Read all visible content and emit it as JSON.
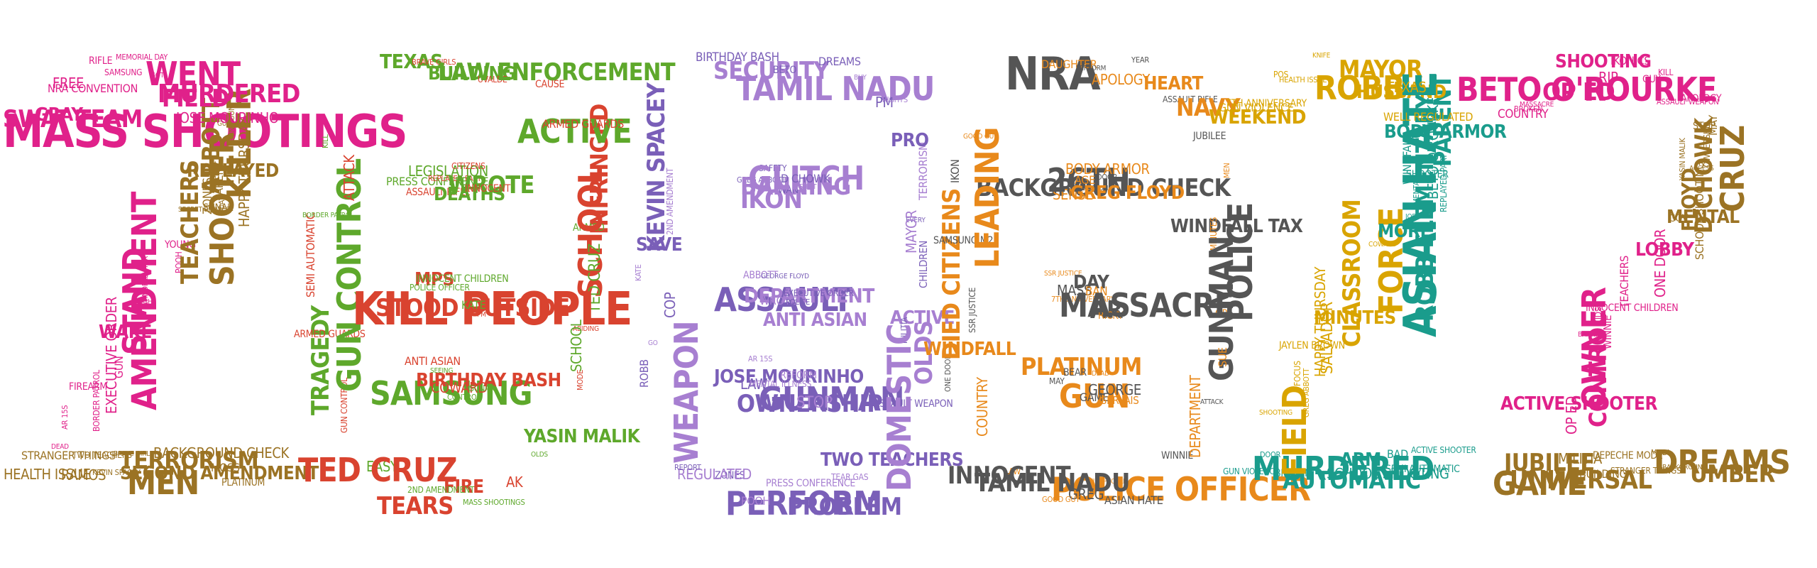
{
  "colors": {
    "pink": "#e0218a",
    "orange": "#e8891b",
    "green": "#5ea82b",
    "teal": "#1a9c8c",
    "purple": "#7a5fb8",
    "brown": "#9b7324",
    "gray": "#555555",
    "red": "#d9432f",
    "gold": "#d9a400",
    "lilac": "#a77fd1"
  },
  "digits": [
    {
      "id": "2a",
      "words": [
        "MASS SHOOTINGS",
        "GUNS GUN",
        "YOUNG",
        "HEALTH ISSUE",
        "SWAT TEAM",
        "GUY",
        "POOH",
        "STRANGER THINGS",
        "GRAY",
        "KILLER",
        "WINDFALL TAX",
        "RAMOS",
        "FREE",
        "ABBOTT",
        "RISHI",
        "TWO TEACHERS",
        "NRA CONVENTION",
        "REPLAYED",
        "STAND",
        "KEVIN SPACEY",
        "RIFLE",
        "HAPPY THURSDAY",
        "AMENDMENT",
        "BRAVE GIRLS",
        "SAMSUNG",
        "PARENT",
        "WAKE",
        "MEN",
        "MEMORIAL DAY",
        "SUNAK",
        "EXECUTIVE ORDER",
        "TERRORISM",
        "GOT",
        "ZONES",
        "GUN",
        "SECOND AMENDMENT",
        "WENT",
        "BDAY",
        "FIREARM",
        "BACKGROUND CHECK",
        "FIELD",
        "SECRET SERVICE",
        "BORDER PATROL",
        "MOSS",
        "MURDERED",
        "SHOOTER",
        "AR 15S",
        "PLATINUM",
        "JOSE MOURINHO",
        "TEACHERS",
        "DEAD"
      ]
    },
    {
      "id": "0a",
      "words": [
        "TEXAS",
        "INFRINGED",
        "OLDS",
        "GUN CONTROL",
        "PRESS CONFERENCE",
        "MPS",
        "SAMSUNG",
        "BRAVE GIRLS",
        "ARMED",
        "AK",
        "TRAGEDY",
        "ASSAULT RIFLE",
        "POLICE OFFICER",
        "ANTI ASIAN",
        "BUILDING",
        "SCHOOL",
        "MASS SHOOTINGS",
        "ARMED GUARDS",
        "LEGISLATION",
        "STOOD OUTSIDE",
        "SEEING",
        "UVALDE",
        "TED CRUZ",
        "FIRE",
        "GUN CONTROL",
        "REPLAYED PART",
        "INNOCENT CHILDREN",
        "COWARD",
        "LAW ENFORCEMENT",
        "ABIDING",
        "2ND AMENDMENT",
        "SEMI AUTOMATIC",
        "DEATHS",
        "KILL PEOPLE",
        "CONTROL",
        "CAUSE",
        "SCHOOL",
        "TEARS",
        "BORDER PATROL",
        "CITIZENS",
        "KATE",
        "BIRTHDAY BASH",
        "ACTIVE",
        "MODE",
        "EASY",
        "ATTACK",
        "WROTE",
        "PM",
        "SUNAK",
        "ARMED GUARDS",
        "YASIN MALIK",
        "TED CRUZ",
        "KILL",
        "INNOCENT"
      ]
    },
    {
      "id": "2b",
      "words": [
        "BIRTHDAY BASH",
        "TERRORISM",
        "TWO TEACHERS",
        "WEAPON",
        "GREG ABBOTT",
        "ABBOTT",
        "LAW",
        "SECURITY",
        "EVERY",
        "TEAR GAS",
        "ROBB",
        "IKON",
        "ASSAULT",
        "AR 15S",
        "BETO",
        "MAYOR",
        "PROBLEM",
        "GO",
        "SAFETY",
        "WROTE",
        "JOSE MOURINHO",
        "TAMIL NADU",
        "CHILDREN",
        "PRESS CONFERENCE",
        "COP",
        "BANNING",
        "GEORGE FLOYD",
        "MENTAL ILLNESS",
        "DREAMS",
        "ACTIVE",
        "PERFORM",
        "KATE",
        "WAN",
        "DEPARTMENT",
        "OWNERSHIP",
        "BUY",
        "MILITIA",
        "POOH",
        "SAVE",
        "GLITCH",
        "POLICE",
        "REFORM",
        "PM",
        "OLDS",
        "ZONES",
        "2ND AMENDMENT",
        "D CHOWK",
        "ANTI ASIAN",
        "GUNMAN",
        "RIGHTS",
        "ASSAULT WEAPON",
        "REGULATED",
        "KEVIN SPACEY",
        "SHOT",
        "EXECUTIVE ORDER",
        "STOP",
        "PRO",
        "DOMESTIC",
        "REPORT"
      ]
    },
    {
      "id": "0b",
      "words": [
        "NRA",
        "MEN",
        "WINNIE",
        "COUNTRY",
        "BACKGROUND CHECK",
        "SSR JUSTICE",
        "MAY",
        "DAUGHTER",
        "WINDFALL TAX",
        "POLICE OFFICER",
        "ONE DOOR",
        "SENSE",
        "MASS",
        "PLATINUM",
        "PERFORM",
        "MINUTES",
        "ASIAN HATE",
        "WINDFALL",
        "26TH",
        "7TH ANNIVERSARY",
        "BEAR",
        "APOLOGY",
        "POLICE",
        "KILL PEOPLE",
        "SSR JUSTICE",
        "AGE",
        "DAY",
        "GUN",
        "YEAR",
        "OP",
        "GREG",
        "DIED CITIZENS",
        "SOLUTION",
        "BAN",
        "GAME",
        "HEART",
        "GUNMAN",
        "GOOD GUY",
        "SAMSUNG M23",
        "BODY ARMOR",
        "AR",
        "DEAD",
        "ASSAULT RIFLE",
        "SUE",
        "TAMIL NADU",
        "LEADING",
        "DOOR",
        "RICKY",
        "GEORGE",
        "NAVY",
        "ATTACK",
        "LAW",
        "IKON",
        "GREG FLOYD",
        "MASSACRE",
        "GERVAIS",
        "JUBILEE",
        "DEPARTMENT",
        "INNOCENT",
        "GOOD GUY"
      ]
    },
    {
      "id": "2c",
      "words": [
        "WEEKEND",
        "PARENT",
        "COWARD",
        "GUN VIOLENCE",
        "GUN VIOLENCE",
        "BODY ARMOR",
        "FORCE",
        "DOOR",
        "7TH ANNIVERSARY",
        "BETO O'ROURKE",
        "CLASSROOM",
        "BROKEN",
        "POS",
        "WINDFALL",
        "MINUTES",
        "MURDERED",
        "HEALTH ISSUE",
        "SHOOTER",
        "HAPPY THURSDAY",
        "AUTOMATIC",
        "KNIFE",
        "REPLAYED PART",
        "SALVADOR",
        "ARM",
        "ROBB",
        "MENTAL",
        "JAYLEN BROWN",
        "SCHOOL SHOOTING",
        "MAYOR",
        "JOB",
        "FOCUS",
        "BAD",
        "HUSBAND",
        "ASIAN HATE",
        "GREG ABBOTT",
        "SEMI AUTOMATIC",
        "TEXAS",
        "ROBB ELEMENTARY",
        "SHOOTING",
        "ACTIVE SHOOTER",
        "WELL REGULATED",
        "MORE",
        "FIELD"
      ]
    },
    {
      "id": "2d",
      "words": [
        "COUNTRY",
        "MAY",
        "LOBBY",
        "GAME",
        "BROKEN",
        "STOP",
        "ONE DOOR",
        "JUBILEE",
        "MASSACRE",
        "OWNERSHIP",
        "TEACHERS",
        "UNIVERSAL",
        "BETO O'ROURKE",
        "YASIN MALIK",
        "INNOCENT CHILDREN",
        "MILITIA",
        "OP ED",
        "ACCESS",
        "KIDS",
        "BUILDING",
        "SHOOTING",
        "CRUZ",
        "WINNIE",
        "DEPECHE MODE",
        "RIP",
        "D CHOWK",
        "BANNING",
        "STRANGER THINGS",
        "IKONICS",
        "MENTAL",
        "OWNER",
        "MODI",
        "GUY",
        "FLOYD",
        "CONTROL",
        "BACKGROUND",
        "KILL",
        "SCHOOL SHOOTING",
        "ACTIVE SHOOTER",
        "DREAMS",
        "ASSAULT WEAPON",
        "GOV",
        "OP ED",
        "UMBER",
        "APOLOGY"
      ]
    }
  ]
}
